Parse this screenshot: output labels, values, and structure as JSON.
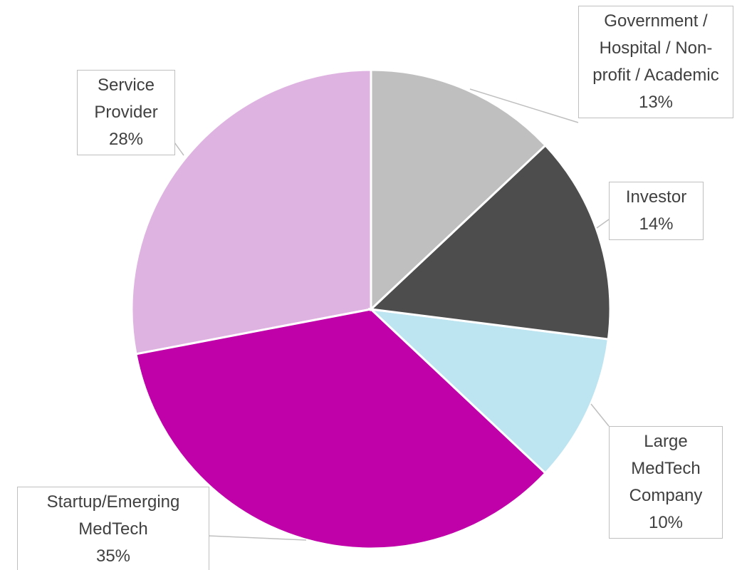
{
  "chart_data": {
    "type": "pie",
    "categories": [
      "Government / Hospital / Non-profit / Academic",
      "Investor",
      "Large MedTech Company",
      "Startup/Emerging MedTech",
      "Service Provider"
    ],
    "values": [
      13,
      14,
      10,
      35,
      28
    ],
    "value_labels": [
      "13%",
      "14%",
      "10%",
      "35%",
      "28%"
    ],
    "colors": [
      "#bfbfbf",
      "#4d4d4d",
      "#bde4f1",
      "#c000a8",
      "#dfb3e1"
    ]
  }
}
